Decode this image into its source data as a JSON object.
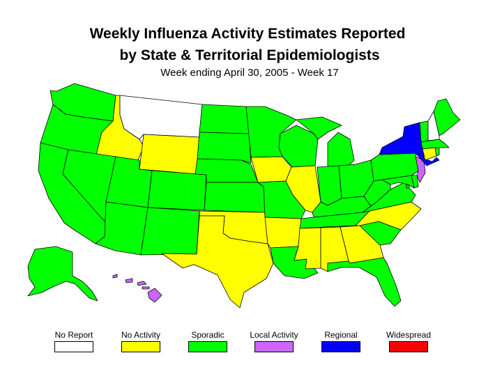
{
  "title_line1": "Weekly Influenza Activity Estimates Reported",
  "title_line2": "by State & Territorial Epidemiologists",
  "subtitle": "Week ending April 30, 2005 - Week 17",
  "colors": {
    "no_report": "#ffffff",
    "no_activity": "#ffff00",
    "sporadic": "#00ff00",
    "local": "#cc66ff",
    "regional": "#0000ff",
    "widespread": "#ff0000"
  },
  "legend": [
    {
      "label": "No Report",
      "color": "#ffffff"
    },
    {
      "label": "No Activity",
      "color": "#ffff00"
    },
    {
      "label": "Sporadic",
      "color": "#00ff00"
    },
    {
      "label": "Local Activity",
      "color": "#cc66ff"
    },
    {
      "label": "Regional",
      "color": "#0000ff"
    },
    {
      "label": "Widespread",
      "color": "#ff0000"
    }
  ],
  "states": {
    "WA": "Sporadic",
    "OR": "Sporadic",
    "CA": "Sporadic",
    "ID": "No Activity",
    "NV": "Sporadic",
    "MT": "No Report",
    "WY": "No Activity",
    "UT": "Sporadic",
    "AZ": "Sporadic",
    "CO": "Sporadic",
    "NM": "Sporadic",
    "ND": "Sporadic",
    "SD": "Sporadic",
    "NE": "Sporadic",
    "KS": "Sporadic",
    "OK": "No Activity",
    "TX": "No Activity",
    "MN": "Sporadic",
    "IA": "No Activity",
    "MO": "Sporadic",
    "AR": "No Activity",
    "LA": "Sporadic",
    "WI": "Sporadic",
    "IL": "No Activity",
    "MI": "Sporadic",
    "IN": "Sporadic",
    "OH": "Sporadic",
    "KY": "Sporadic",
    "TN": "Sporadic",
    "MS": "No Activity",
    "AL": "No Activity",
    "GA": "No Activity",
    "FL": "Sporadic",
    "SC": "Sporadic",
    "NC": "No Activity",
    "VA": "Sporadic",
    "WV": "Sporadic",
    "MD": "Sporadic",
    "DE": "Sporadic",
    "NJ": "Local Activity",
    "PA": "Sporadic",
    "NY": "Regional",
    "CT": "No Activity",
    "RI": "Sporadic",
    "MA": "Sporadic",
    "VT": "Sporadic",
    "NH": "No Report",
    "ME": "Sporadic",
    "AK": "Sporadic",
    "HI": "Local Activity",
    "DC": "Sporadic"
  }
}
